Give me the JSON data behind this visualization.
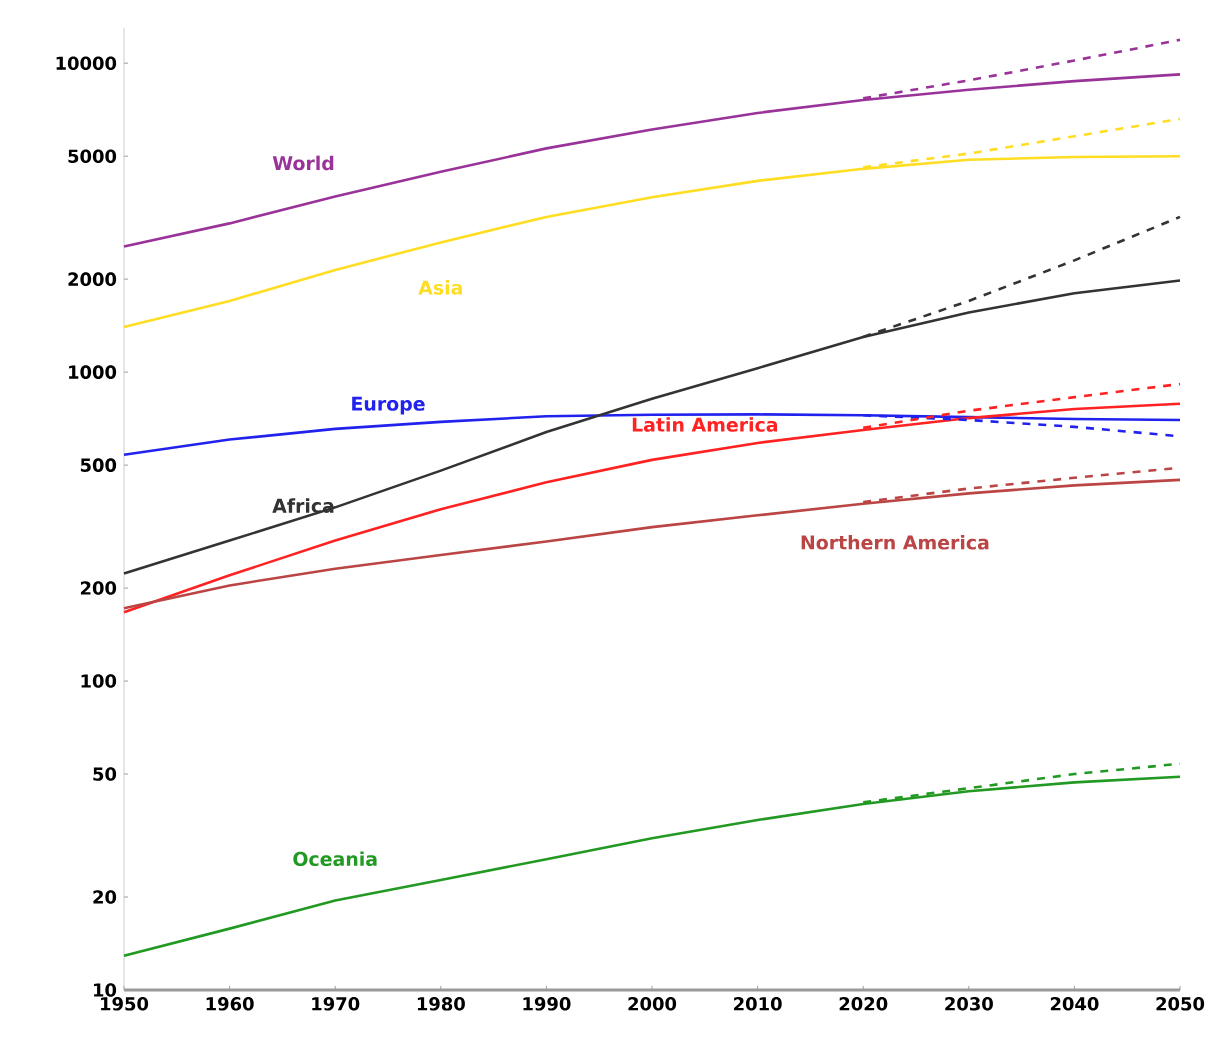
{
  "chart_data": {
    "type": "line",
    "log": "y",
    "grid": false,
    "marker": "none",
    "x": [
      1950,
      1960,
      1970,
      1980,
      1990,
      2000,
      2010,
      2020,
      2030,
      2040,
      2050
    ],
    "xlim": [
      1950,
      2050
    ],
    "xticks": [
      1950,
      1960,
      1970,
      1980,
      1990,
      2000,
      2010,
      2020,
      2030,
      2040,
      2050
    ],
    "ylim": [
      10,
      13000
    ],
    "yticks": [
      10,
      20,
      50,
      100,
      200,
      500,
      1000,
      2000,
      5000,
      10000
    ],
    "series": [
      {
        "name": "World",
        "color": "#993399",
        "line_style": "solid",
        "values": [
          2550,
          3030,
          3700,
          4450,
          5300,
          6100,
          6900,
          7600,
          8200,
          8750,
          9200
        ]
      },
      {
        "name": "Asia",
        "color": "#ffdd22",
        "line_style": "solid",
        "values": [
          1400,
          1700,
          2140,
          2630,
          3180,
          3680,
          4160,
          4550,
          4870,
          4970,
          5000
        ]
      },
      {
        "name": "Europe",
        "color": "#2222ee",
        "line_style": "solid",
        "values": [
          540,
          605,
          655,
          690,
          720,
          728,
          730,
          725,
          715,
          705,
          700
        ]
      },
      {
        "name": "Africa",
        "color": "#333333",
        "line_style": "solid",
        "values": [
          223,
          285,
          365,
          480,
          640,
          820,
          1030,
          1300,
          1560,
          1800,
          1980
        ]
      },
      {
        "name": "Latin America",
        "color": "#ff2222",
        "line_style": "solid",
        "values": [
          167,
          220,
          285,
          360,
          440,
          520,
          590,
          650,
          710,
          760,
          790
        ]
      },
      {
        "name": "Northern America",
        "color": "#bb4444",
        "line_style": "solid",
        "values": [
          172,
          204,
          231,
          256,
          283,
          315,
          344,
          375,
          405,
          430,
          448
        ]
      },
      {
        "name": "Oceania",
        "color": "#229922",
        "line_style": "solid",
        "values": [
          12.9,
          15.8,
          19.5,
          22.7,
          26.5,
          31,
          35.5,
          40,
          44,
          47,
          49
        ]
      },
      {
        "color": "#993399",
        "line_style": "dashed",
        "x": [
          2020,
          2030,
          2040,
          2050
        ],
        "values": [
          7700,
          8800,
          10200,
          11900
        ]
      },
      {
        "color": "#ffdd22",
        "line_style": "dashed",
        "x": [
          2020,
          2030,
          2040,
          2050
        ],
        "values": [
          4600,
          5100,
          5800,
          6600
        ]
      },
      {
        "color": "#2222ee",
        "line_style": "dashed",
        "x": [
          2020,
          2030,
          2040,
          2050
        ],
        "values": [
          725,
          700,
          665,
          620
        ]
      },
      {
        "color": "#333333",
        "line_style": "dashed",
        "x": [
          2020,
          2030,
          2040,
          2050
        ],
        "values": [
          1300,
          1700,
          2300,
          3180
        ]
      },
      {
        "color": "#ff2222",
        "line_style": "dashed",
        "x": [
          2020,
          2030,
          2040,
          2050
        ],
        "values": [
          660,
          750,
          830,
          915
        ]
      },
      {
        "color": "#bb4444",
        "line_style": "dashed",
        "x": [
          2020,
          2030,
          2040,
          2050
        ],
        "values": [
          380,
          420,
          455,
          490
        ]
      },
      {
        "color": "#229922",
        "line_style": "dashed",
        "x": [
          2020,
          2030,
          2040,
          2050
        ],
        "values": [
          40.5,
          45,
          50,
          54
        ]
      }
    ]
  }
}
